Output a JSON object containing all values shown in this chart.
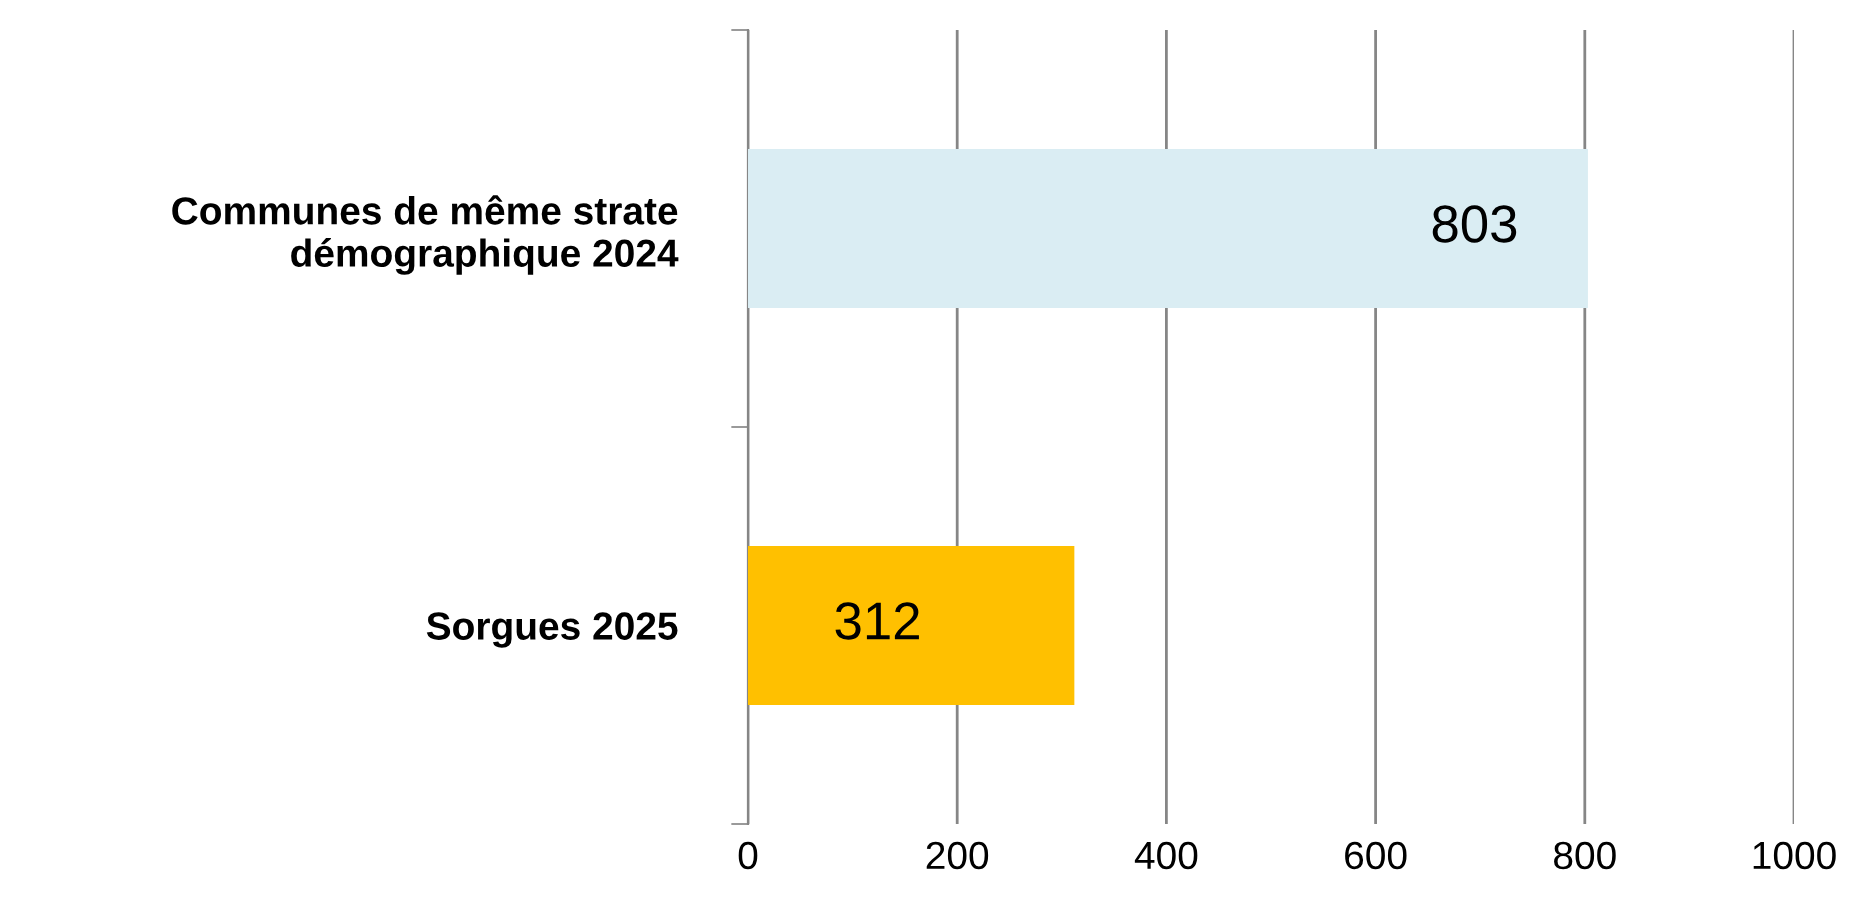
{
  "chart_data": {
    "type": "bar",
    "orientation": "horizontal",
    "categories": [
      "Communes de même strate\ndémographique 2024",
      "Sorgues 2025"
    ],
    "values": [
      803,
      312
    ],
    "colors": [
      "#daedf3",
      "#ffc000"
    ],
    "xlim": [
      0,
      1000
    ],
    "xticks": [
      0,
      200,
      400,
      600,
      800,
      1000
    ],
    "grid": "x",
    "data_labels": true
  }
}
